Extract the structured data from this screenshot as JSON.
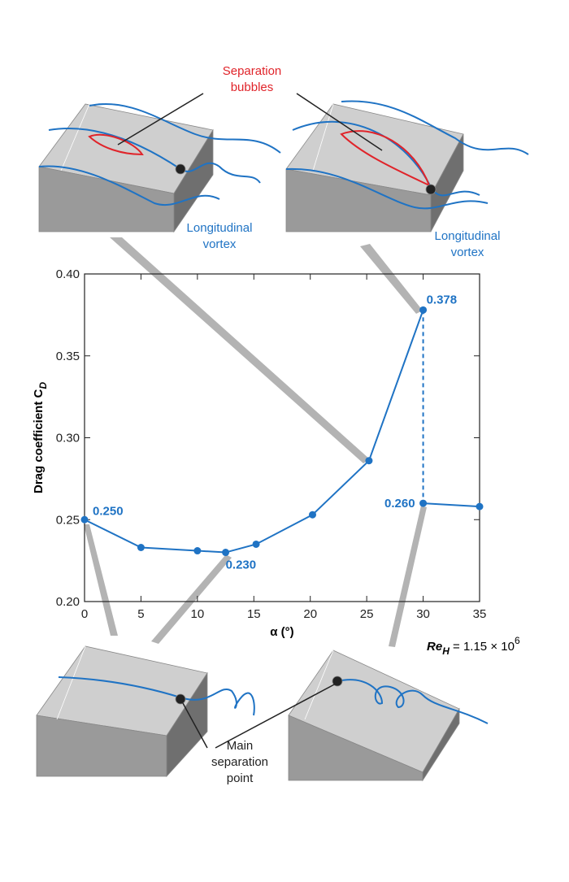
{
  "chart_data": {
    "type": "line",
    "xlabel": "α (°)",
    "ylabel": {
      "text": "Drag coefficient C",
      "sub": "D"
    },
    "xlim": [
      0,
      35
    ],
    "xticks": [
      0,
      5,
      10,
      15,
      20,
      25,
      30,
      35
    ],
    "ylim": [
      0.2,
      0.4
    ],
    "yticks": [
      {
        "value": 0.2,
        "label": "0.20"
      },
      0.25,
      {
        "value": 0.3,
        "label": "0.30"
      },
      0.35,
      {
        "value": 0.4,
        "label": "0.40"
      }
    ],
    "series": [
      {
        "color": "#1f73c4",
        "x": [
          0,
          5,
          10,
          12.5,
          15.2,
          20.2,
          25.2,
          30
        ],
        "values": [
          0.25,
          0.233,
          0.231,
          0.23,
          0.235,
          0.253,
          0.286,
          0.378
        ],
        "value_labels": [
          "0.250",
          null,
          null,
          "0.230",
          null,
          null,
          null,
          "0.378"
        ]
      },
      {
        "color": "#1f73c4",
        "x": [
          30,
          35
        ],
        "values": [
          0.26,
          0.258
        ],
        "value_labels": [
          "0.260",
          null
        ]
      }
    ],
    "annotation": {
      "base": "Re",
      "sub": "H",
      "text": " = 1.15 × 10",
      "sup": "6"
    },
    "callouts": {
      "separation_bubbles": [
        "Separation",
        "bubbles"
      ],
      "vortex_left": [
        "Longitudinal",
        "vortex"
      ],
      "vortex_right": [
        "Longitudinal",
        "vortex"
      ],
      "main_separation": [
        "Main",
        "separation",
        "point"
      ]
    }
  }
}
